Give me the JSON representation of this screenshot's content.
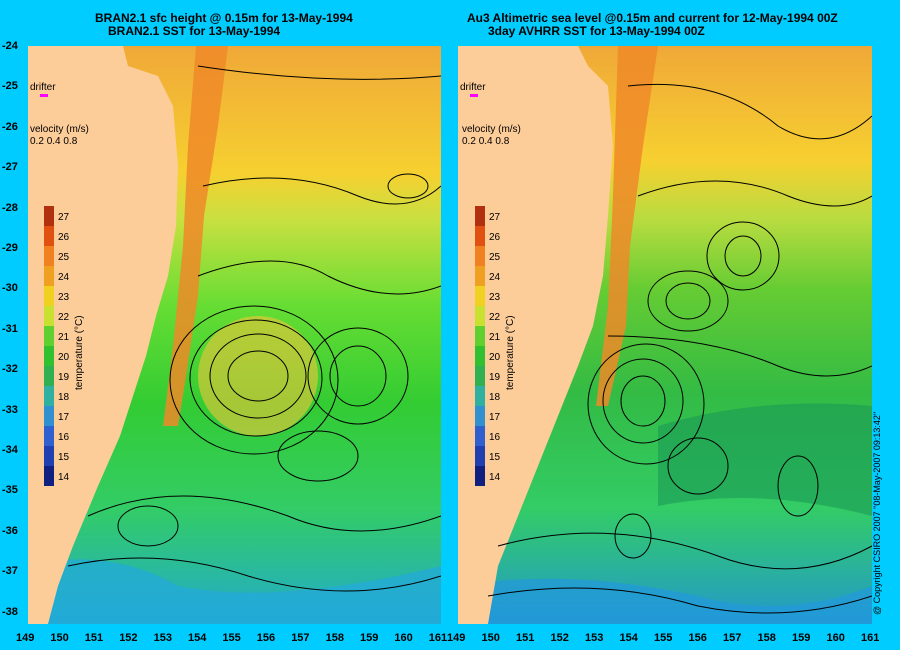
{
  "left": {
    "title1": "BRAN2.1 sfc height @ 0.15m for 13-May-1994",
    "title2": "BRAN2.1 SST for 13-May-1994"
  },
  "right": {
    "title1": "Au3 Altimetric sea level  @0.15m and current for 12-May-1994 00Z",
    "title2": "3day AVHRR SST for 13-May-1994 00Z"
  },
  "legend": {
    "drifter": "drifter",
    "velocity": "velocity (m/s)",
    "speeds": [
      "0.2",
      "0.4",
      "0.8"
    ],
    "colorbar_label": "temperature (°C)",
    "colorbar_ticks": [
      "27",
      "26",
      "25",
      "24",
      "23",
      "22",
      "21",
      "20",
      "19",
      "18",
      "17",
      "16",
      "15",
      "14"
    ]
  },
  "axes": {
    "lat_labels": [
      "-24",
      "-25",
      "-26",
      "-27",
      "-28",
      "-29",
      "-30",
      "-31",
      "-32",
      "-33",
      "-34",
      "-35",
      "-36",
      "-37",
      "-38"
    ],
    "lon_labels_left": [
      "149",
      "150",
      "151",
      "152",
      "153",
      "154",
      "155",
      "156",
      "157",
      "158",
      "159",
      "160",
      "161"
    ],
    "lon_labels_right": [
      "149",
      "150",
      "151",
      "152",
      "153",
      "154",
      "155",
      "156",
      "157",
      "158",
      "159",
      "160",
      "161"
    ]
  },
  "copyright": "@ Copyright CSIRO 2007 \"08-May-2007 09:13:42\"",
  "colors": {
    "background": "#00ccff",
    "land": "#fccc99",
    "warm": "#f0a030",
    "green": "#33cc33",
    "cool": "#22aacc"
  }
}
